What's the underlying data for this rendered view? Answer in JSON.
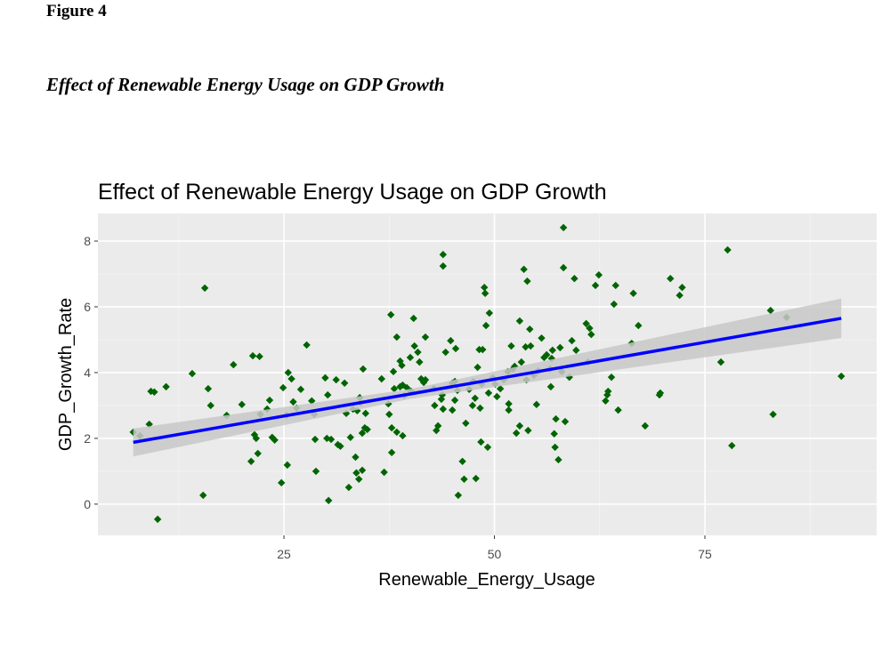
{
  "document": {
    "label": "Figure 4",
    "caption": "Effect of Renewable Energy Usage on GDP Growth"
  },
  "chart_data": {
    "type": "scatter",
    "title": "Effect of Renewable Energy Usage on GDP Growth",
    "x_label": "Renewable_Energy_Usage",
    "y_label": "GDP_Growth_Rate",
    "xlim": [
      2.9,
      95.4
    ],
    "xticks": [
      25,
      50,
      75
    ],
    "ylim": [
      -0.95,
      8.84
    ],
    "yticks": [
      0,
      2,
      4,
      6,
      8
    ],
    "grid": true,
    "minor_grid": true,
    "color": "#006400",
    "x": [
      7.1,
      7.9,
      9.0,
      9.2,
      9.6,
      10.0,
      11.0,
      14.1,
      15.4,
      15.6,
      16.0,
      16.3,
      18.2,
      19.0,
      20.0,
      21.1,
      21.3,
      21.5,
      21.7,
      22.1,
      21.9,
      22.2,
      23.0,
      23.3,
      23.6,
      23.9,
      24.7,
      24.9,
      25.3,
      25.4,
      25.5,
      25.9,
      26.1,
      26.5,
      27.0,
      27.7,
      28.3,
      28.6,
      28.7,
      28.8,
      29.9,
      30.1,
      30.2,
      30.3,
      30.6,
      31.2,
      31.4,
      31.7,
      32.2,
      32.4,
      32.7,
      32.9,
      33.2,
      33.5,
      33.6,
      33.7,
      33.9,
      34.0,
      34.1,
      34.3,
      34.3,
      34.6,
      34.7,
      34.9,
      34.4,
      36.6,
      36.9,
      37.4,
      37.5,
      37.7,
      37.8,
      37.8,
      38.0,
      38.1,
      38.4,
      38.4,
      38.8,
      38.8,
      39.0,
      39.1,
      39.1,
      39.3,
      39.6,
      40.0,
      40.1,
      40.4,
      40.5,
      40.9,
      41.1,
      41.3,
      41.6,
      41.8,
      41.8,
      42.8,
      42.9,
      43.1,
      43.3,
      43.7,
      43.8,
      43.9,
      43.9,
      43.9,
      44.2,
      44.8,
      45.0,
      45.0,
      45.3,
      45.3,
      45.4,
      45.6,
      45.7,
      46.2,
      46.4,
      46.6,
      47.0,
      47.4,
      47.5,
      47.7,
      47.8,
      48.0,
      48.2,
      48.3,
      48.4,
      48.5,
      48.6,
      48.8,
      48.9,
      49.0,
      49.2,
      49.3,
      49.4,
      49.8,
      50.1,
      50.3,
      50.7,
      51.1,
      51.6,
      51.7,
      51.7,
      52.0,
      52.2,
      52.4,
      52.6,
      53.0,
      53.0,
      53.2,
      53.5,
      53.7,
      53.8,
      53.9,
      54.0,
      54.2,
      54.3,
      54.7,
      55.0,
      55.2,
      55.6,
      55.9,
      56.2,
      56.6,
      56.7,
      56.8,
      56.9,
      57.1,
      57.2,
      57.3,
      57.6,
      57.8,
      58.0,
      58.2,
      58.2,
      58.4,
      58.9,
      59.2,
      59.5,
      59.7,
      60.9,
      61.1,
      61.3,
      61.5,
      62.0,
      62.4,
      63.2,
      63.4,
      63.5,
      63.9,
      64.2,
      64.4,
      64.7,
      66.3,
      66.5,
      67.1,
      67.9,
      69.6,
      69.7,
      70.9,
      72.0,
      72.3,
      76.9,
      77.7,
      78.2,
      82.8,
      83.1,
      84.7,
      91.2
    ],
    "y": [
      2.19,
      2.08,
      2.43,
      3.43,
      3.41,
      -0.46,
      3.57,
      3.97,
      0.27,
      6.57,
      3.51,
      3.0,
      2.7,
      4.24,
      3.03,
      1.3,
      4.51,
      2.11,
      2.0,
      4.49,
      1.54,
      2.73,
      2.89,
      3.16,
      2.03,
      1.95,
      0.65,
      3.54,
      2.7,
      1.19,
      4.0,
      3.81,
      3.11,
      2.92,
      3.49,
      4.84,
      3.14,
      2.73,
      1.97,
      1.0,
      3.84,
      2.0,
      3.32,
      0.11,
      1.97,
      3.78,
      1.81,
      1.76,
      3.68,
      2.76,
      0.51,
      2.03,
      2.89,
      1.43,
      0.95,
      2.84,
      0.76,
      3.24,
      3.08,
      1.03,
      2.16,
      2.32,
      2.76,
      2.27,
      4.11,
      3.81,
      0.97,
      3.05,
      2.73,
      5.76,
      2.32,
      1.57,
      4.03,
      3.51,
      2.19,
      5.08,
      4.35,
      3.57,
      4.22,
      3.62,
      2.08,
      3.3,
      3.54,
      4.46,
      3.43,
      5.65,
      4.81,
      4.62,
      4.32,
      3.81,
      3.7,
      5.08,
      3.78,
      3.51,
      3.0,
      2.24,
      2.38,
      3.19,
      3.32,
      7.59,
      7.24,
      2.89,
      4.62,
      4.97,
      3.68,
      2.86,
      3.16,
      3.73,
      4.73,
      3.46,
      0.27,
      1.3,
      0.76,
      2.46,
      3.49,
      3.0,
      3.73,
      3.22,
      0.78,
      4.16,
      4.7,
      2.92,
      1.89,
      3.65,
      4.7,
      6.59,
      6.41,
      5.43,
      1.73,
      3.38,
      5.81,
      3.84,
      3.65,
      3.27,
      3.51,
      3.78,
      4.03,
      3.05,
      2.86,
      4.81,
      4.11,
      4.19,
      2.16,
      2.38,
      5.57,
      4.32,
      7.14,
      4.78,
      3.78,
      6.78,
      2.24,
      5.32,
      4.81,
      3.92,
      3.03,
      4.05,
      5.05,
      4.46,
      4.54,
      4.11,
      3.57,
      4.43,
      4.68,
      2.14,
      1.73,
      2.59,
      1.35,
      4.76,
      4.03,
      8.41,
      7.19,
      2.51,
      3.86,
      4.97,
      6.86,
      4.68,
      5.49,
      4.32,
      5.35,
      5.16,
      6.65,
      6.97,
      3.14,
      3.32,
      3.43,
      3.86,
      6.08,
      6.65,
      2.86,
      4.89,
      6.41,
      5.43,
      2.38,
      3.32,
      3.38,
      6.86,
      6.35,
      6.59,
      4.32,
      7.73,
      1.78,
      5.89,
      2.73,
      5.68,
      3.89
    ],
    "fit": {
      "color": "#0000ff",
      "band_color": "#c8c8c8",
      "x": [
        7.1,
        40,
        91.2
      ],
      "y": [
        1.88,
        3.35,
        5.65
      ],
      "band_lower": [
        1.45,
        3.2,
        5.05
      ],
      "band_upper": [
        2.3,
        3.5,
        6.25
      ]
    }
  }
}
